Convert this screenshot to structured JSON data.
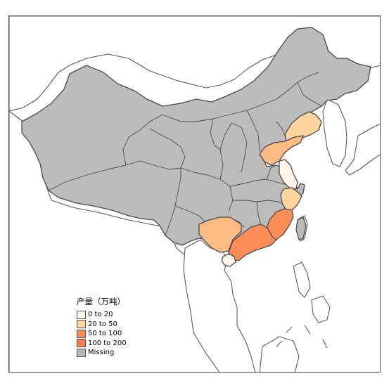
{
  "colors": {
    "missing": "#bdbdbd",
    "bin_0_20": "#fff5eb",
    "bin_20_50": "#fdd49e",
    "bin_50_100": "#fdbb84",
    "bin_100_200": "#fc8d59",
    "land": "#ffffff",
    "border": "#4d4d4d"
  },
  "legend": {
    "title": "产量（万吨）",
    "items": [
      {
        "label": "0 to 20",
        "color": "#fff5eb"
      },
      {
        "label": "20 to 50",
        "color": "#fdd49e"
      },
      {
        "label": "50 to 100",
        "color": "#fc8d59"
      },
      {
        "label": "100 to 200",
        "color": "#f97d4d"
      },
      {
        "label": "Missing",
        "color": "#b8b8b8"
      }
    ]
  },
  "regions": [
    {
      "name": "Liaoning",
      "bin": "20 to 50"
    },
    {
      "name": "Shandong",
      "bin": "20 to 50"
    },
    {
      "name": "Jiangsu",
      "bin": "0 to 20"
    },
    {
      "name": "Zhejiang",
      "bin": "20 to 50"
    },
    {
      "name": "Fujian",
      "bin": "100 to 200"
    },
    {
      "name": "Guangdong",
      "bin": "100 to 200"
    },
    {
      "name": "Guangxi",
      "bin": "50 to 100"
    },
    {
      "name": "Hainan",
      "bin": "0 to 20"
    }
  ]
}
